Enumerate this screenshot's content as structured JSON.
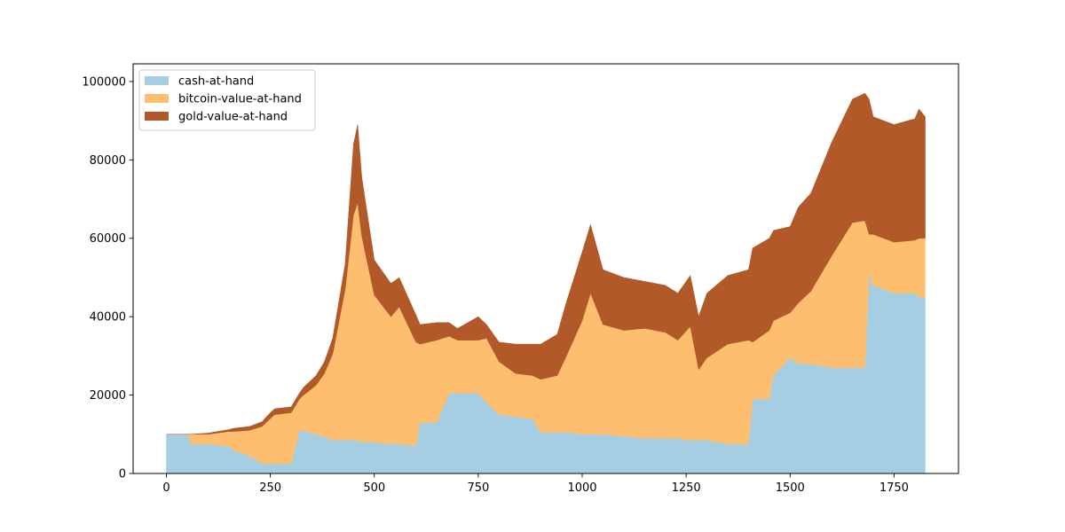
{
  "chart_data": {
    "type": "area",
    "stacked": true,
    "title": "",
    "xlabel": "",
    "ylabel": "",
    "xlim": [
      -80,
      1905
    ],
    "ylim": [
      0,
      104500
    ],
    "xticks": [
      0,
      250,
      500,
      750,
      1000,
      1250,
      1500,
      1750
    ],
    "xtick_labels": [
      "0",
      "250",
      "500",
      "750",
      "1000",
      "1250",
      "1500",
      "1750"
    ],
    "yticks": [
      0,
      20000,
      40000,
      60000,
      80000,
      100000
    ],
    "ytick_labels": [
      "0",
      "20000",
      "40000",
      "60000",
      "80000",
      "100000"
    ],
    "grid": false,
    "legend_position": "upper-left",
    "x": [
      0,
      50,
      60,
      100,
      150,
      160,
      200,
      230,
      240,
      250,
      260,
      300,
      320,
      330,
      360,
      380,
      400,
      430,
      450,
      460,
      470,
      500,
      540,
      560,
      600,
      610,
      650,
      680,
      700,
      750,
      770,
      800,
      840,
      880,
      900,
      940,
      960,
      1000,
      1020,
      1050,
      1100,
      1150,
      1200,
      1230,
      1260,
      1280,
      1300,
      1350,
      1400,
      1410,
      1450,
      1460,
      1500,
      1520,
      1550,
      1600,
      1650,
      1680,
      1690,
      1700,
      1750,
      1800,
      1810,
      1825
    ],
    "series": [
      {
        "name": "cash-at-hand",
        "color": "#a6cee3",
        "values": [
          10000,
          10000,
          7500,
          7500,
          7000,
          6000,
          4500,
          2500,
          2500,
          2500,
          2500,
          2500,
          11000,
          11000,
          10000,
          9500,
          8500,
          8500,
          8500,
          8500,
          8000,
          8000,
          7500,
          7500,
          7000,
          13000,
          13000,
          20500,
          20500,
          20500,
          18000,
          15000,
          14500,
          14000,
          10500,
          10500,
          10500,
          10000,
          10000,
          10000,
          9500,
          9000,
          9000,
          9000,
          8500,
          8500,
          8500,
          7500,
          7500,
          19000,
          19000,
          25000,
          29500,
          28000,
          28000,
          27000,
          27000,
          27000,
          51000,
          48000,
          46000,
          46000,
          45000,
          45000
        ]
      },
      {
        "name": "bitcoin-value-at-hand",
        "color": "#fdbf6f",
        "values": [
          0,
          0,
          2500,
          2500,
          3700,
          4700,
          6500,
          9500,
          10500,
          11500,
          12500,
          13000,
          8000,
          9000,
          12500,
          16000,
          22000,
          38500,
          57500,
          60500,
          52500,
          37500,
          32500,
          35000,
          26500,
          20000,
          21000,
          14500,
          13500,
          13500,
          16500,
          13500,
          11000,
          11000,
          13500,
          14500,
          19000,
          29000,
          36000,
          28000,
          27000,
          28000,
          27000,
          25000,
          29000,
          18000,
          21000,
          25500,
          26500,
          14500,
          17500,
          14000,
          11500,
          15500,
          18500,
          28500,
          37000,
          37500,
          10000,
          13000,
          13000,
          13500,
          15000,
          15000
        ]
      },
      {
        "name": "gold-value-at-hand",
        "color": "#b15928",
        "values": [
          0,
          0,
          0,
          300,
          500,
          800,
          1000,
          1200,
          1400,
          1500,
          1500,
          1500,
          1500,
          2000,
          2500,
          3000,
          4000,
          6500,
          18000,
          20000,
          15000,
          9000,
          8500,
          7500,
          7000,
          5000,
          4500,
          3500,
          3000,
          6000,
          3500,
          5000,
          7500,
          8000,
          9000,
          10500,
          13500,
          17500,
          17500,
          14000,
          13500,
          12000,
          12000,
          12000,
          13000,
          13500,
          16500,
          17500,
          18000,
          24000,
          23500,
          23000,
          22000,
          24500,
          25000,
          29000,
          31500,
          32500,
          34500,
          30000,
          30000,
          31000,
          33000,
          31000
        ]
      }
    ]
  }
}
